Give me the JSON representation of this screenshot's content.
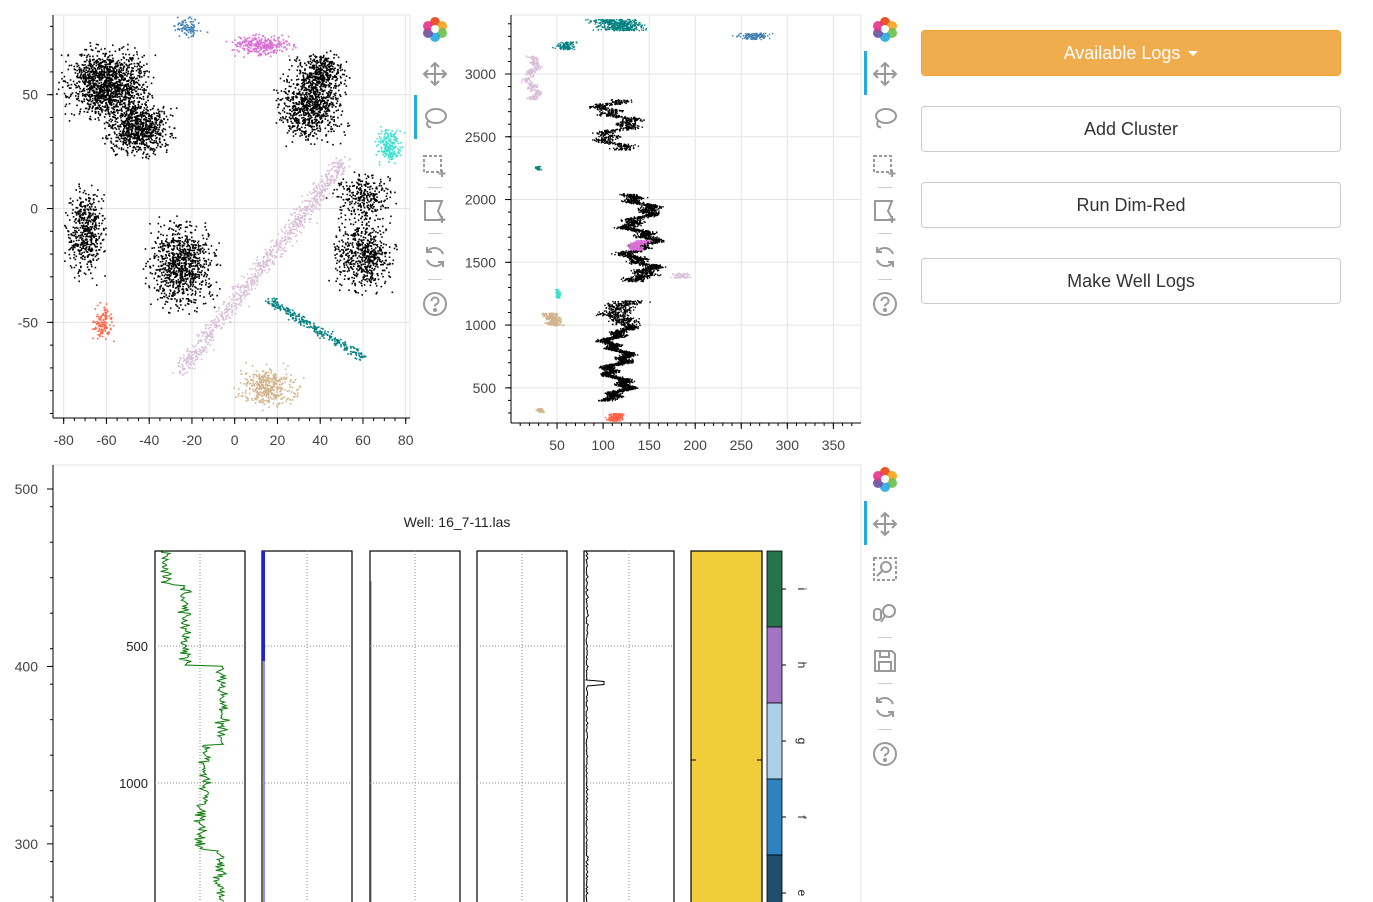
{
  "controls": {
    "available_logs": "Available Logs",
    "add_cluster": "Add Cluster",
    "run_dim_red": "Run Dim-Red",
    "make_well_logs": "Make Well Logs"
  },
  "toolbar_icons": {
    "top_left": [
      "bokeh-logo-icon",
      "pan-icon",
      "lasso-select-icon",
      "box-select-icon",
      "poly-select-icon",
      "reset-icon",
      "help-icon"
    ],
    "top_right": [
      "bokeh-logo-icon",
      "pan-icon",
      "lasso-select-icon",
      "box-select-icon",
      "poly-select-icon",
      "reset-icon",
      "help-icon"
    ],
    "bottom": [
      "bokeh-logo-icon",
      "pan-icon",
      "box-zoom-icon",
      "wheel-zoom-icon",
      "save-icon",
      "reset-icon",
      "help-icon"
    ]
  },
  "colors": {
    "black": "#000000",
    "pink": "#da70d6",
    "steelblue": "#4682b4",
    "turquoise": "#40e0d0",
    "thistle": "#d8bfd8",
    "teal": "#008080",
    "tan": "#d2b48c",
    "tomato": "#ff6347",
    "primary_button": "#f0ad4e"
  },
  "chart_data": [
    {
      "type": "scatter",
      "title": "",
      "x_ticks": [
        "-80",
        "-60",
        "-40",
        "-20",
        "0",
        "20",
        "40",
        "60",
        "80"
      ],
      "y_ticks": [
        "50",
        "0",
        "-50"
      ],
      "xlim": [
        -85,
        82
      ],
      "ylim": [
        -92,
        85
      ],
      "grid": true,
      "series_colors": [
        "black",
        "pink",
        "steelblue",
        "turquoise",
        "thistle",
        "teal",
        "tan",
        "tomato"
      ]
    },
    {
      "type": "scatter",
      "title": "",
      "x_ticks": [
        "50",
        "100",
        "150",
        "200",
        "250",
        "300",
        "350"
      ],
      "y_ticks": [
        "3000",
        "2500",
        "2000",
        "1500",
        "1000",
        "500"
      ],
      "xlim": [
        0,
        380
      ],
      "ylim": [
        220,
        3470
      ],
      "grid": true,
      "series_colors": [
        "black",
        "pink",
        "steelblue",
        "turquoise",
        "thistle",
        "teal",
        "tan",
        "tomato"
      ]
    },
    {
      "type": "image",
      "title": "",
      "y_ticks": [
        "500",
        "400",
        "300"
      ],
      "ylim": [
        243,
        500
      ],
      "image": {
        "title": "Well: 16_7-11.las",
        "depth_ticks": [
          "500",
          "1000"
        ],
        "facies_labels": [
          "i",
          "h",
          "g",
          "f",
          "e"
        ],
        "facies_colors": [
          "#27744a",
          "#a374c3",
          "#abd0ea",
          "#2f82c0",
          "#1f4e70"
        ],
        "fill_color": "#f2cd3a"
      }
    }
  ]
}
